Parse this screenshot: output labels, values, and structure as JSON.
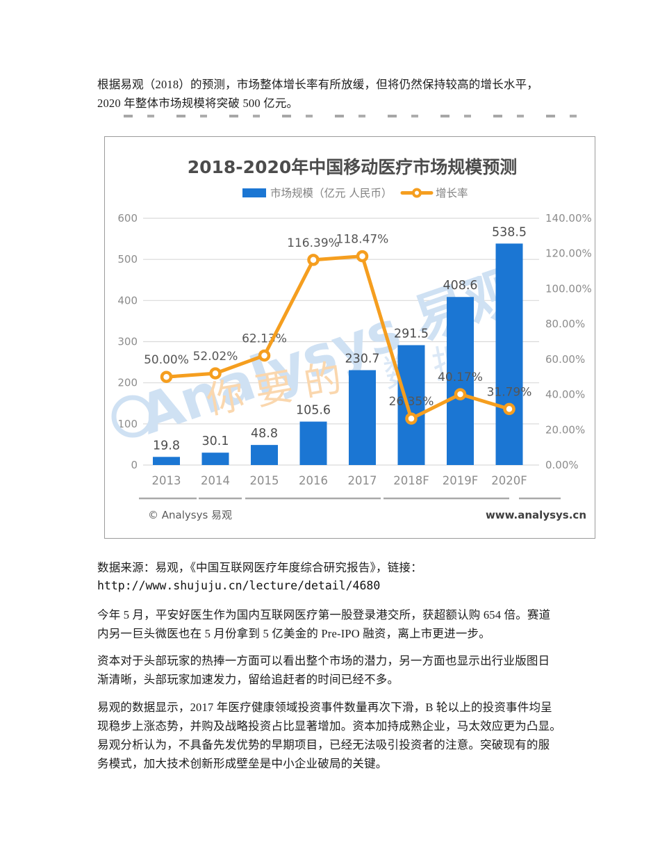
{
  "document": {
    "intro": "根据易观（2018）的预测，市场整体增长率有所放缓，但将仍然保持较高的增长水平，\n2020 年整体市场规模将突破 500 亿元。",
    "source_prefix": "数据来源：易观，《中国互联网医疗年度综合研究报告》，链接：",
    "source_url": "http://www.shujuju.cn/lecture/detail/4680",
    "para_ipo": "今年 5 月，平安好医生作为国内互联网医疗第一股登录港交所，获超额认购 654 倍。赛道\n内另一巨头微医也在 5 月份拿到 5 亿美金的 Pre-IPO 融资，离上市更进一步。",
    "para_capital": "资本对于头部玩家的热捧一方面可以看出整个市场的潜力，另一方面也显示出行业版图日\n渐清晰，头部玩家加速发力，留给追赶者的时间已经不多。",
    "para_investment": "易观的数据显示，2017 年医疗健康领域投资事件数量再次下滑，B 轮以上的投资事件均呈\n现稳步上涨态势，并购及战略投资占比显著增加。资本加持成熟企业，马太效应更为凸显。\n易观分析认为，不具备先发优势的早期项目，已经无法吸引投资者的注意。突破现有的服\n务模式，加大技术创新形成壁垒是中小企业破局的关键。"
  },
  "chart_data": {
    "type": "bar",
    "subtype": "bar+line combo, dual axis",
    "title": "2018-2020年中国移动医疗市场规模预测",
    "categories": [
      "2013",
      "2014",
      "2015",
      "2016",
      "2017",
      "2018F",
      "2019F",
      "2020F"
    ],
    "series": [
      {
        "name": "市场规模（亿元 人民币）",
        "type": "bar",
        "axis": "left",
        "color": "#1b76d3",
        "values": [
          19.8,
          30.1,
          48.8,
          105.6,
          230.7,
          291.5,
          408.6,
          538.5
        ],
        "labels": [
          "19.8",
          "30.1",
          "48.8",
          "105.6",
          "230.7",
          "291.5",
          "408.6",
          "538.5"
        ]
      },
      {
        "name": "增长率",
        "type": "line",
        "axis": "right",
        "color": "#f59e1f",
        "values_percent": [
          50.0,
          52.02,
          62.13,
          116.39,
          118.47,
          26.35,
          40.17,
          31.79
        ],
        "labels": [
          "50.00%",
          "52.02%",
          "62.13%",
          "116.39%",
          "118.47%",
          "26.35%",
          "40.17%",
          "31.79%"
        ]
      }
    ],
    "left_axis": {
      "min": 0,
      "max": 600,
      "tick_labels": [
        "600",
        "500",
        "400",
        "300",
        "200",
        "100",
        "0"
      ]
    },
    "right_axis": {
      "min_percent": 0,
      "max_percent": 140,
      "tick_labels": [
        "140.00%",
        "120.00%",
        "100.00%",
        "80.00%",
        "60.00%",
        "40.00%",
        "20.00%",
        "0.00%"
      ]
    },
    "grid": "horizontal",
    "legend_position": "top",
    "watermark": {
      "brand": "Analysys 易观",
      "tagline_orange": "你 要 的",
      "tagline_blue": "数 据"
    },
    "footer_left": "© Analysys 易观",
    "footer_right": "www.analysys.cn"
  },
  "colors": {
    "bar_blue": "#1b76d3",
    "line_orange": "#f59e1f",
    "axis_gray": "#8c8c8c",
    "value_label_gray": "#4c4c4c",
    "grid_gray": "#d9d9d9",
    "title_gray": "#4c4c4c",
    "watermark_blue": "#cfe1f3",
    "watermark_orange": "#fad7ae"
  }
}
